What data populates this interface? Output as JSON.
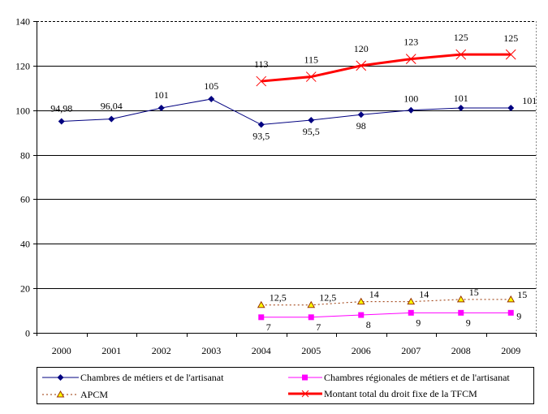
{
  "chart_data": {
    "type": "line",
    "categories": [
      "2000",
      "2001",
      "2002",
      "2003",
      "2004",
      "2005",
      "2006",
      "2007",
      "2008",
      "2009"
    ],
    "ylim": [
      0,
      140
    ],
    "yticks": [
      0,
      20,
      40,
      60,
      80,
      100,
      120,
      140
    ],
    "grid": true,
    "legend_position": "bottom",
    "series": [
      {
        "name": "Chambres de métiers et de l'artisanat",
        "color": "#000080",
        "marker": "diamond",
        "line": "solid",
        "values": [
          94.98,
          96.04,
          101,
          105,
          93.5,
          95.5,
          98,
          100,
          101,
          101
        ],
        "labels": [
          "94,98",
          "96,04",
          "101",
          "105",
          "93,5",
          "95,5",
          "98",
          "100",
          "101",
          "101"
        ]
      },
      {
        "name": "Chambres régionales de métiers et de l'artisanat",
        "color": "#ff00ff",
        "marker": "square",
        "line": "solid",
        "values": [
          null,
          null,
          null,
          null,
          7,
          7,
          8,
          9,
          9,
          9
        ],
        "labels": [
          null,
          null,
          null,
          null,
          "7",
          "7",
          "8",
          "9",
          "9",
          "9"
        ]
      },
      {
        "name": "APCM",
        "color": "#993300",
        "marker": "triangle",
        "line": "dotted",
        "values": [
          null,
          null,
          null,
          null,
          12.5,
          12.5,
          14,
          14,
          15,
          15
        ],
        "labels": [
          null,
          null,
          null,
          null,
          "12,5",
          "12,5",
          "14",
          "14",
          "15",
          "15"
        ]
      },
      {
        "name": "Montant total du droit fixe de la TFCM",
        "color": "#ff0000",
        "marker": "x",
        "line": "thick",
        "values": [
          null,
          null,
          null,
          null,
          113,
          115,
          120,
          123,
          125,
          125
        ],
        "labels": [
          null,
          null,
          null,
          null,
          "113",
          "115",
          "120",
          "123",
          "125",
          "125"
        ]
      }
    ]
  }
}
